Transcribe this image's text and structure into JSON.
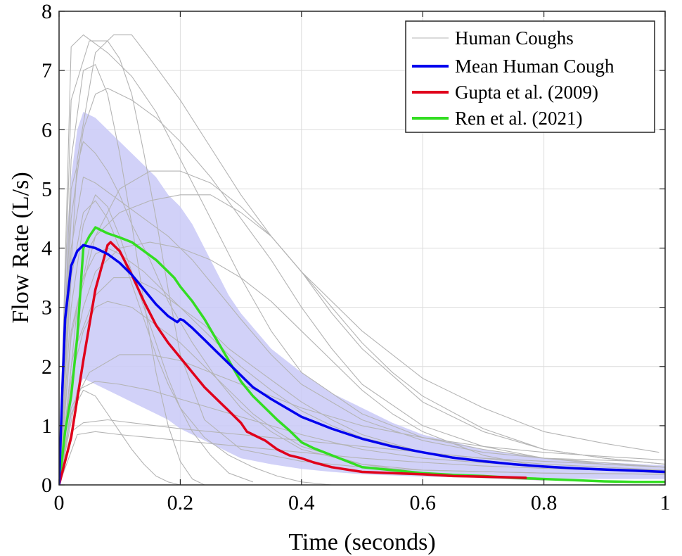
{
  "chart_data": {
    "type": "line",
    "xlabel": "Time (seconds)",
    "ylabel": "Flow Rate (L/s)",
    "xlim": [
      0,
      1
    ],
    "ylim": [
      0,
      8
    ],
    "xticks": [
      0,
      0.2,
      0.4,
      0.6,
      0.8,
      1
    ],
    "xtick_labels": [
      "0",
      "0.2",
      "0.4",
      "0.6",
      "0.8",
      "1"
    ],
    "yticks": [
      0,
      1,
      2,
      3,
      4,
      5,
      6,
      7,
      8
    ],
    "ytick_labels": [
      "0",
      "1",
      "2",
      "3",
      "4",
      "5",
      "6",
      "7",
      "8"
    ],
    "grid": true,
    "legend_position": "top-right",
    "colors": {
      "human": "#b4b4b4",
      "mean": "#0000ee",
      "gupta": "#e0001b",
      "ren": "#33dd22",
      "band": "#c9c9f7"
    },
    "band": {
      "name": "",
      "x": [
        0,
        0.01,
        0.02,
        0.03,
        0.04,
        0.06,
        0.08,
        0.1,
        0.12,
        0.14,
        0.16,
        0.18,
        0.2,
        0.22,
        0.24,
        0.26,
        0.28,
        0.3,
        0.35,
        0.4,
        0.45,
        0.5,
        0.55,
        0.6,
        0.7,
        0.8,
        0.9,
        1.0
      ],
      "upper": [
        0,
        3.8,
        5.2,
        6.0,
        6.3,
        6.2,
        6.0,
        5.8,
        5.6,
        5.4,
        5.2,
        4.9,
        4.7,
        4.4,
        4.0,
        3.6,
        3.2,
        2.9,
        2.3,
        1.9,
        1.55,
        1.3,
        1.05,
        0.85,
        0.6,
        0.45,
        0.38,
        0.33
      ],
      "lower": [
        0,
        0.5,
        1.1,
        1.6,
        1.8,
        1.7,
        1.6,
        1.5,
        1.4,
        1.3,
        1.2,
        1.1,
        0.95,
        0.85,
        0.75,
        0.65,
        0.55,
        0.45,
        0.35,
        0.27,
        0.22,
        0.18,
        0.16,
        0.14,
        0.12,
        0.11,
        0.1,
        0.1
      ]
    },
    "series": [
      {
        "key": "mean",
        "name": "Mean Human Cough",
        "x": [
          0,
          0.005,
          0.01,
          0.02,
          0.03,
          0.04,
          0.06,
          0.08,
          0.1,
          0.12,
          0.14,
          0.16,
          0.18,
          0.195,
          0.2,
          0.205,
          0.22,
          0.24,
          0.26,
          0.28,
          0.3,
          0.32,
          0.35,
          0.4,
          0.45,
          0.5,
          0.55,
          0.6,
          0.65,
          0.7,
          0.75,
          0.8,
          0.85,
          0.9,
          0.95,
          1.0
        ],
        "y": [
          0,
          1.5,
          2.8,
          3.7,
          3.95,
          4.05,
          4.0,
          3.9,
          3.75,
          3.55,
          3.3,
          3.05,
          2.85,
          2.75,
          2.8,
          2.78,
          2.65,
          2.45,
          2.25,
          2.05,
          1.85,
          1.65,
          1.45,
          1.15,
          0.95,
          0.78,
          0.65,
          0.55,
          0.46,
          0.4,
          0.35,
          0.31,
          0.28,
          0.26,
          0.24,
          0.22
        ]
      },
      {
        "key": "gupta",
        "name": "Gupta et al. (2009)",
        "x": [
          0,
          0.02,
          0.04,
          0.06,
          0.08,
          0.085,
          0.1,
          0.12,
          0.14,
          0.16,
          0.18,
          0.2,
          0.22,
          0.24,
          0.26,
          0.28,
          0.3,
          0.31,
          0.32,
          0.34,
          0.36,
          0.38,
          0.4,
          0.42,
          0.45,
          0.5,
          0.55,
          0.6,
          0.65,
          0.7,
          0.74,
          0.77
        ],
        "y": [
          0,
          0.8,
          2.1,
          3.3,
          4.05,
          4.1,
          3.95,
          3.55,
          3.1,
          2.7,
          2.4,
          2.15,
          1.9,
          1.65,
          1.45,
          1.25,
          1.05,
          0.9,
          0.85,
          0.75,
          0.6,
          0.5,
          0.45,
          0.38,
          0.3,
          0.22,
          0.2,
          0.18,
          0.15,
          0.14,
          0.13,
          0.12
        ]
      },
      {
        "key": "ren",
        "name": "Ren et al. (2021)",
        "x": [
          0,
          0.01,
          0.02,
          0.03,
          0.04,
          0.05,
          0.06,
          0.07,
          0.08,
          0.1,
          0.12,
          0.14,
          0.16,
          0.18,
          0.19,
          0.2,
          0.22,
          0.24,
          0.26,
          0.28,
          0.3,
          0.32,
          0.34,
          0.36,
          0.38,
          0.4,
          0.42,
          0.45,
          0.48,
          0.5,
          0.55,
          0.6,
          0.65,
          0.7,
          0.75,
          0.8,
          0.85,
          0.9,
          0.95,
          1.0
        ],
        "y": [
          0,
          0.9,
          1.5,
          2.5,
          4.0,
          4.2,
          4.35,
          4.3,
          4.25,
          4.18,
          4.1,
          3.95,
          3.8,
          3.6,
          3.5,
          3.35,
          3.1,
          2.8,
          2.45,
          2.1,
          1.75,
          1.5,
          1.3,
          1.1,
          0.92,
          0.72,
          0.62,
          0.5,
          0.38,
          0.3,
          0.25,
          0.2,
          0.17,
          0.15,
          0.12,
          0.1,
          0.08,
          0.06,
          0.05,
          0.05
        ]
      }
    ],
    "human_coughs": {
      "name": "Human Coughs",
      "series": [
        {
          "x": [
            0,
            0.02,
            0.04,
            0.08,
            0.12,
            0.16,
            0.2,
            0.25,
            0.3,
            0.35,
            0.4,
            0.5,
            0.6,
            0.7,
            0.8,
            0.9,
            1.0
          ],
          "y": [
            0,
            7.4,
            7.6,
            7.3,
            6.9,
            6.3,
            5.5,
            4.5,
            3.5,
            2.6,
            1.9,
            1.2,
            0.8,
            0.6,
            0.45,
            0.35,
            0.3
          ]
        },
        {
          "x": [
            0,
            0.02,
            0.05,
            0.08,
            0.1,
            0.12,
            0.14,
            0.16,
            0.18,
            0.2,
            0.24,
            0.3,
            0.4,
            0.5,
            0.6,
            0.8,
            1.0
          ],
          "y": [
            0,
            6.5,
            7.5,
            7.5,
            7.2,
            6.6,
            5.6,
            4.5,
            3.3,
            2.2,
            1.1,
            0.6,
            0.4,
            0.3,
            0.25,
            0.2,
            0.18
          ]
        },
        {
          "x": [
            0,
            0.03,
            0.06,
            0.09,
            0.12,
            0.15,
            0.2,
            0.25,
            0.3,
            0.35,
            0.4,
            0.5,
            0.6,
            0.7,
            0.8,
            0.9,
            0.99
          ],
          "y": [
            0,
            5.5,
            7.3,
            7.6,
            7.6,
            7.2,
            6.5,
            5.7,
            4.9,
            4.2,
            3.6,
            2.6,
            1.8,
            1.3,
            0.9,
            0.7,
            0.55
          ]
        },
        {
          "x": [
            0,
            0.02,
            0.04,
            0.06,
            0.08,
            0.1,
            0.12,
            0.14,
            0.16,
            0.18,
            0.2,
            0.22,
            0.24
          ],
          "y": [
            0,
            5.5,
            7.0,
            7.1,
            6.6,
            5.6,
            4.4,
            3.1,
            1.9,
            1.0,
            0.4,
            0.1,
            0
          ]
        },
        {
          "x": [
            0,
            0.02,
            0.04,
            0.06,
            0.08,
            0.12,
            0.16,
            0.2,
            0.25,
            0.3,
            0.35,
            0.4,
            0.45,
            0.5,
            0.6,
            0.7,
            0.8,
            1.0
          ],
          "y": [
            0,
            4.5,
            6.0,
            6.6,
            6.7,
            6.5,
            6.2,
            5.8,
            5.2,
            4.5,
            3.8,
            3.0,
            2.3,
            1.7,
            1.0,
            0.65,
            0.45,
            0.3
          ]
        },
        {
          "x": [
            0,
            0.02,
            0.05,
            0.1,
            0.15,
            0.2,
            0.25,
            0.3,
            0.35,
            0.4,
            0.45,
            0.5,
            0.55,
            0.6,
            0.7,
            0.8,
            0.9,
            1.0
          ],
          "y": [
            0,
            2.5,
            4.0,
            5.0,
            5.3,
            5.3,
            5.1,
            4.7,
            4.2,
            3.6,
            3.0,
            2.4,
            1.9,
            1.5,
            0.95,
            0.6,
            0.45,
            0.35
          ]
        },
        {
          "x": [
            0,
            0.02,
            0.04,
            0.06,
            0.08,
            0.1,
            0.12,
            0.15,
            0.18,
            0.22,
            0.26,
            0.3,
            0.35,
            0.4,
            0.5,
            0.6,
            0.8,
            1.0
          ],
          "y": [
            0,
            5.0,
            5.8,
            5.6,
            5.3,
            4.9,
            4.4,
            3.8,
            3.1,
            2.4,
            1.8,
            1.3,
            0.9,
            0.6,
            0.35,
            0.25,
            0.2,
            0.18
          ]
        },
        {
          "x": [
            0,
            0.02,
            0.04,
            0.06,
            0.1,
            0.14,
            0.18,
            0.22,
            0.26,
            0.3,
            0.35,
            0.4,
            0.5,
            0.6,
            0.7,
            0.8,
            0.95
          ],
          "y": [
            0,
            4.0,
            5.2,
            5.1,
            4.8,
            4.5,
            4.2,
            3.8,
            3.3,
            2.8,
            2.2,
            1.7,
            1.1,
            0.75,
            0.55,
            0.45,
            0.4
          ]
        },
        {
          "x": [
            0,
            0.03,
            0.06,
            0.1,
            0.15,
            0.2,
            0.25,
            0.3,
            0.35,
            0.4,
            0.45,
            0.5,
            0.6,
            0.7,
            0.8,
            0.9,
            1.0
          ],
          "y": [
            0,
            3.0,
            4.2,
            4.6,
            4.8,
            4.9,
            4.9,
            4.6,
            4.2,
            3.6,
            2.9,
            2.3,
            1.4,
            0.9,
            0.6,
            0.45,
            0.35
          ]
        },
        {
          "x": [
            0,
            0.02,
            0.04,
            0.06,
            0.08,
            0.1,
            0.12,
            0.14,
            0.16,
            0.18,
            0.2,
            0.24,
            0.28,
            0.32,
            0.36,
            0.4,
            0.45
          ],
          "y": [
            0,
            3.5,
            4.6,
            4.8,
            4.5,
            4.0,
            3.4,
            2.8,
            2.2,
            1.7,
            1.3,
            0.8,
            0.5,
            0.3,
            0.15,
            0.05,
            0
          ]
        },
        {
          "x": [
            0,
            0.02,
            0.04,
            0.06,
            0.08,
            0.1,
            0.14,
            0.18,
            0.22,
            0.26,
            0.3,
            0.35,
            0.4,
            0.45,
            0.5,
            0.6,
            0.8,
            1.0
          ],
          "y": [
            0,
            2.6,
            3.5,
            3.9,
            4.0,
            3.9,
            3.6,
            3.2,
            2.8,
            2.4,
            2.0,
            1.6,
            1.25,
            1.0,
            0.8,
            0.55,
            0.35,
            0.25
          ]
        },
        {
          "x": [
            0,
            0.03,
            0.06,
            0.09,
            0.12,
            0.16,
            0.2,
            0.24,
            0.28,
            0.32,
            0.36,
            0.4,
            0.45,
            0.5,
            0.6,
            0.7,
            0.8,
            1.0
          ],
          "y": [
            0,
            2.4,
            3.2,
            3.5,
            3.5,
            3.3,
            3.0,
            2.7,
            2.3,
            2.0,
            1.7,
            1.4,
            1.1,
            0.85,
            0.55,
            0.4,
            0.3,
            0.25
          ]
        },
        {
          "x": [
            0,
            0.02,
            0.04,
            0.06,
            0.08,
            0.12,
            0.16,
            0.2,
            0.24,
            0.28,
            0.32,
            0.36,
            0.4,
            0.5,
            0.6,
            0.7,
            0.8
          ],
          "y": [
            0,
            1.8,
            2.6,
            3.0,
            3.1,
            3.0,
            2.7,
            2.4,
            2.0,
            1.6,
            1.2,
            0.9,
            0.65,
            0.35,
            0.2,
            0.12,
            0.08
          ]
        },
        {
          "x": [
            0,
            0.02,
            0.05,
            0.1,
            0.15,
            0.2,
            0.25,
            0.3,
            0.35,
            0.4,
            0.5,
            0.6,
            0.7,
            0.8,
            0.9,
            1.0
          ],
          "y": [
            0,
            1.3,
            1.9,
            2.2,
            2.2,
            2.1,
            1.9,
            1.7,
            1.5,
            1.3,
            1.0,
            0.8,
            0.65,
            0.55,
            0.48,
            0.42
          ]
        },
        {
          "x": [
            0,
            0.02,
            0.04,
            0.08,
            0.12,
            0.16,
            0.2,
            0.25,
            0.3,
            0.35,
            0.4,
            0.5,
            0.6,
            0.7,
            0.8,
            0.9,
            1.0
          ],
          "y": [
            0,
            0.9,
            1.05,
            1.1,
            1.05,
            1.0,
            0.95,
            0.9,
            0.85,
            0.8,
            0.75,
            0.65,
            0.55,
            0.45,
            0.4,
            0.35,
            0.3
          ]
        },
        {
          "x": [
            0,
            0.03,
            0.06,
            0.1,
            0.15,
            0.2,
            0.3,
            0.4,
            0.5,
            0.6,
            0.7,
            0.8,
            0.9,
            1.0
          ],
          "y": [
            0,
            0.85,
            0.9,
            0.85,
            0.8,
            0.75,
            0.65,
            0.55,
            0.45,
            0.38,
            0.32,
            0.28,
            0.25,
            0.22
          ]
        },
        {
          "x": [
            0,
            0.02,
            0.04,
            0.06,
            0.08,
            0.1,
            0.12,
            0.14,
            0.16,
            0.18,
            0.2
          ],
          "y": [
            0,
            1.2,
            1.6,
            1.5,
            1.2,
            0.9,
            0.6,
            0.35,
            0.15,
            0.05,
            0
          ]
        },
        {
          "x": [
            0,
            0.03,
            0.06,
            0.1,
            0.15,
            0.2,
            0.25,
            0.3,
            0.35,
            0.4,
            0.5,
            0.6,
            0.8,
            1.0
          ],
          "y": [
            0,
            1.6,
            1.75,
            1.7,
            1.6,
            1.45,
            1.3,
            1.15,
            1.0,
            0.85,
            0.6,
            0.45,
            0.3,
            0.22
          ]
        },
        {
          "x": [
            0,
            0.02,
            0.04,
            0.06,
            0.1,
            0.15,
            0.2,
            0.25,
            0.3,
            0.35,
            0.4,
            0.45,
            0.5,
            0.55,
            0.6,
            0.7,
            0.8,
            1.0
          ],
          "y": [
            0,
            2.0,
            3.0,
            3.6,
            4.0,
            4.1,
            4.0,
            3.8,
            3.5,
            3.1,
            2.6,
            2.1,
            1.6,
            1.2,
            0.9,
            0.5,
            0.3,
            0.2
          ]
        },
        {
          "x": [
            0,
            0.02,
            0.04,
            0.06,
            0.08,
            0.1,
            0.12,
            0.14,
            0.16,
            0.18,
            0.2,
            0.22,
            0.25,
            0.28,
            0.32
          ],
          "y": [
            0,
            3.0,
            4.4,
            4.9,
            4.7,
            4.2,
            3.6,
            3.0,
            2.4,
            1.8,
            1.3,
            0.9,
            0.5,
            0.2,
            0.05
          ]
        }
      ]
    }
  }
}
